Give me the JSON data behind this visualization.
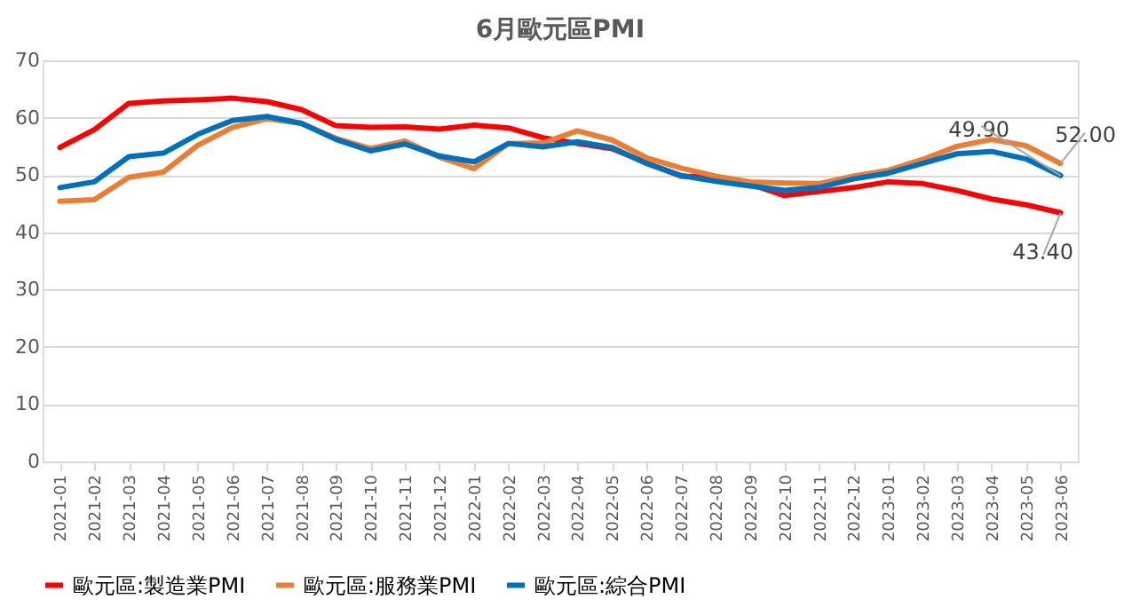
{
  "chart_data": {
    "type": "line",
    "title": "6月歐元區PMI",
    "categories": [
      "2021-01",
      "2021-02",
      "2021-03",
      "2021-04",
      "2021-05",
      "2021-06",
      "2021-07",
      "2021-08",
      "2021-09",
      "2021-10",
      "2021-11",
      "2021-12",
      "2022-01",
      "2022-02",
      "2022-03",
      "2022-04",
      "2022-05",
      "2022-06",
      "2022-07",
      "2022-08",
      "2022-09",
      "2022-10",
      "2022-11",
      "2022-12",
      "2023-01",
      "2023-02",
      "2023-03",
      "2023-04",
      "2023-05",
      "2023-06"
    ],
    "series": [
      {
        "name": "歐元區:製造業PMI",
        "color": "#ff0000",
        "values": [
          54.8,
          57.9,
          62.5,
          62.9,
          63.1,
          63.4,
          62.8,
          61.4,
          58.6,
          58.3,
          58.4,
          58.0,
          58.7,
          58.2,
          56.5,
          55.5,
          54.6,
          52.1,
          49.8,
          49.6,
          48.4,
          46.4,
          47.1,
          47.8,
          48.8,
          48.5,
          47.3,
          45.8,
          44.8,
          43.4
        ],
        "value_labels": [
          null,
          null,
          null,
          null,
          null,
          null,
          null,
          null,
          null,
          null,
          null,
          null,
          null,
          null,
          null,
          null,
          null,
          null,
          null,
          null,
          null,
          null,
          null,
          null,
          null,
          null,
          null,
          null,
          null,
          "43.40"
        ]
      },
      {
        "name": "歐元區:服務業PMI",
        "color": "#ed7d31",
        "values": [
          45.4,
          45.7,
          49.6,
          50.5,
          55.2,
          58.3,
          59.8,
          59.0,
          56.4,
          54.6,
          55.9,
          53.1,
          51.1,
          55.5,
          55.6,
          57.7,
          56.1,
          53.0,
          51.2,
          49.8,
          48.8,
          48.6,
          48.5,
          49.8,
          50.8,
          52.7,
          55.0,
          56.2,
          55.1,
          52.0
        ],
        "value_labels": [
          null,
          null,
          null,
          null,
          null,
          null,
          null,
          null,
          null,
          null,
          null,
          null,
          null,
          null,
          null,
          null,
          null,
          null,
          null,
          null,
          null,
          null,
          null,
          null,
          null,
          null,
          null,
          null,
          null,
          "52.00"
        ]
      },
      {
        "name": "歐元區:綜合PMI",
        "color": "#0070c0",
        "values": [
          47.8,
          48.8,
          53.2,
          53.8,
          57.1,
          59.5,
          60.2,
          59.0,
          56.2,
          54.2,
          55.4,
          53.3,
          52.3,
          55.5,
          54.9,
          55.8,
          54.8,
          52.0,
          49.9,
          48.9,
          48.1,
          47.3,
          47.8,
          49.3,
          50.3,
          52.0,
          53.7,
          54.1,
          52.8,
          49.9
        ],
        "value_labels": [
          null,
          null,
          null,
          null,
          null,
          null,
          null,
          null,
          null,
          null,
          null,
          null,
          null,
          null,
          null,
          null,
          null,
          null,
          null,
          null,
          null,
          null,
          null,
          null,
          null,
          null,
          null,
          null,
          null,
          "49.90"
        ]
      }
    ],
    "ylim": [
      0,
      70
    ],
    "yticks": [
      0,
      10,
      20,
      30,
      40,
      50,
      60,
      70
    ],
    "grid": "y",
    "legend": "bottom",
    "marker": "none",
    "line_style": "solid"
  }
}
